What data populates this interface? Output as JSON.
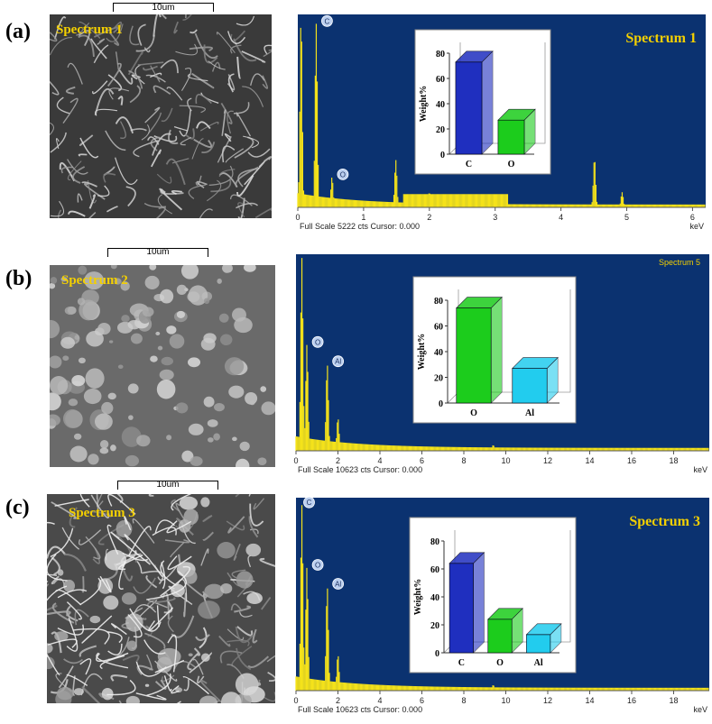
{
  "panels": [
    {
      "label": "(a)",
      "scale_label": "10um",
      "sem_title": "Spectrum 1",
      "spectrum_title": "Spectrum 1",
      "fullscale": "Full Scale 5222 cts Cursor: 0.000",
      "axis_unit": "keV"
    },
    {
      "label": "(b)",
      "scale_label": "10um",
      "sem_title": "Spectrum 2",
      "spectrum_title": "Spectrum 5",
      "fullscale": "Full Scale 10623 cts Cursor: 0.000",
      "axis_unit": "keV"
    },
    {
      "label": "(c)",
      "scale_label": "10um",
      "sem_title": "Spectrum 3",
      "spectrum_title": "Spectrum 3",
      "fullscale": "Full Scale 10623 cts Cursor: 0.000",
      "axis_unit": "keV"
    }
  ],
  "colors": {
    "spectrum_bg": "#0b3270",
    "spectrum_line": "#f4e21a",
    "bar_c": "#1f2fbf",
    "bar_o": "#1ccc1c",
    "bar_al": "#22ccee",
    "title_yellow": "#f4d000"
  },
  "chart_data": [
    {
      "type": "line",
      "panel": "(a)",
      "xlim": [
        0,
        6.2
      ],
      "xticks": [
        "0",
        "1",
        "2",
        "3",
        "4",
        "5",
        "6"
      ],
      "peaks": [
        {
          "x": 0.05,
          "y": 1.0,
          "label": ""
        },
        {
          "x": 0.28,
          "y": 0.97,
          "label": "C"
        },
        {
          "x": 0.52,
          "y": 0.16,
          "label": "O"
        },
        {
          "x": 1.49,
          "y": 0.25,
          "label": ""
        },
        {
          "x": 2.0,
          "y": 0.08,
          "label": ""
        },
        {
          "x": 4.51,
          "y": 0.26,
          "label": ""
        },
        {
          "x": 4.93,
          "y": 0.08,
          "label": ""
        }
      ],
      "inset": {
        "ylabel": "Weight%",
        "ylim": [
          0,
          80
        ],
        "yticks": [
          "0",
          "20",
          "40",
          "60",
          "80"
        ],
        "categories": [
          "C",
          "O"
        ],
        "values": [
          73,
          27
        ]
      }
    },
    {
      "type": "line",
      "panel": "(b)",
      "xlim": [
        0,
        19.7
      ],
      "xticks": [
        "0",
        "2",
        "4",
        "6",
        "8",
        "10",
        "12",
        "14",
        "16",
        "18"
      ],
      "peaks": [
        {
          "x": 0.28,
          "y": 1.0,
          "label": ""
        },
        {
          "x": 0.52,
          "y": 0.55,
          "label": "O"
        },
        {
          "x": 1.49,
          "y": 0.45,
          "label": "Al"
        },
        {
          "x": 2.0,
          "y": 0.17,
          "label": ""
        },
        {
          "x": 8.05,
          "y": 0.02,
          "label": ""
        },
        {
          "x": 9.4,
          "y": 0.03,
          "label": ""
        }
      ],
      "inset": {
        "ylabel": "Weight%",
        "ylim": [
          0,
          80
        ],
        "yticks": [
          "0",
          "20",
          "40",
          "60",
          "80"
        ],
        "categories": [
          "O",
          "Al"
        ],
        "values": [
          74,
          27
        ]
      }
    },
    {
      "type": "line",
      "panel": "(c)",
      "xlim": [
        0,
        19.7
      ],
      "xticks": [
        "0",
        "2",
        "4",
        "6",
        "8",
        "10",
        "12",
        "14",
        "16",
        "18"
      ],
      "peaks": [
        {
          "x": 0.28,
          "y": 0.98,
          "label": "C"
        },
        {
          "x": 0.52,
          "y": 0.65,
          "label": "O"
        },
        {
          "x": 1.49,
          "y": 0.55,
          "label": "Al"
        },
        {
          "x": 2.0,
          "y": 0.19,
          "label": ""
        },
        {
          "x": 8.05,
          "y": 0.02,
          "label": ""
        },
        {
          "x": 9.4,
          "y": 0.03,
          "label": ""
        }
      ],
      "inset": {
        "ylabel": "Weight%",
        "ylim": [
          0,
          80
        ],
        "yticks": [
          "0",
          "20",
          "40",
          "60",
          "80"
        ],
        "categories": [
          "C",
          "O",
          "Al"
        ],
        "values": [
          64,
          24,
          13
        ]
      }
    }
  ]
}
